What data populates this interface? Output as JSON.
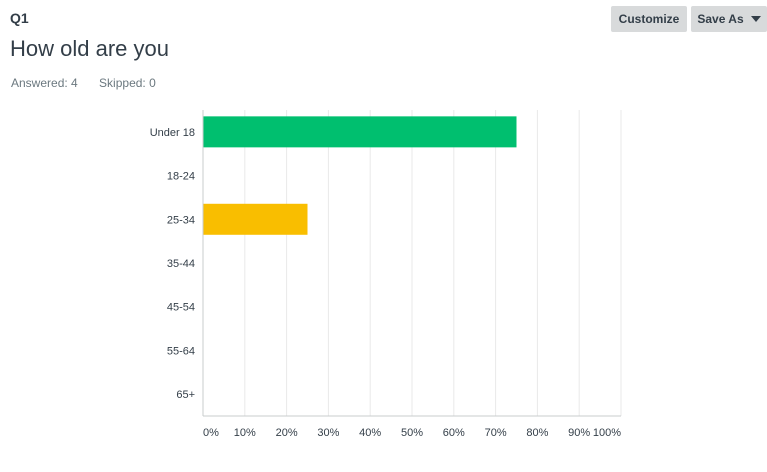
{
  "question": {
    "number": "Q1",
    "title": "How old are you",
    "answered": "Answered: 4",
    "skipped": "Skipped: 0"
  },
  "toolbar": {
    "customize_label": "Customize",
    "save_as_label": "Save As"
  },
  "colors": {
    "green": "#00bf6f",
    "yellow": "#f9be00",
    "grid": "#e9e9e9",
    "axis": "#c9ccce"
  },
  "chart_data": {
    "type": "bar",
    "orientation": "horizontal",
    "categories": [
      "Under 18",
      "18-24",
      "25-34",
      "35-44",
      "45-54",
      "55-64",
      "65+"
    ],
    "values": [
      75,
      0,
      25,
      0,
      0,
      0,
      0
    ],
    "bar_colors": [
      "#00bf6f",
      "#00bf6f",
      "#f9be00",
      "#00bf6f",
      "#00bf6f",
      "#00bf6f",
      "#00bf6f"
    ],
    "xlim": [
      0,
      100
    ],
    "x_ticks": [
      "0%",
      "10%",
      "20%",
      "30%",
      "40%",
      "50%",
      "60%",
      "70%",
      "80%",
      "90%",
      "100%"
    ],
    "grid": true
  }
}
